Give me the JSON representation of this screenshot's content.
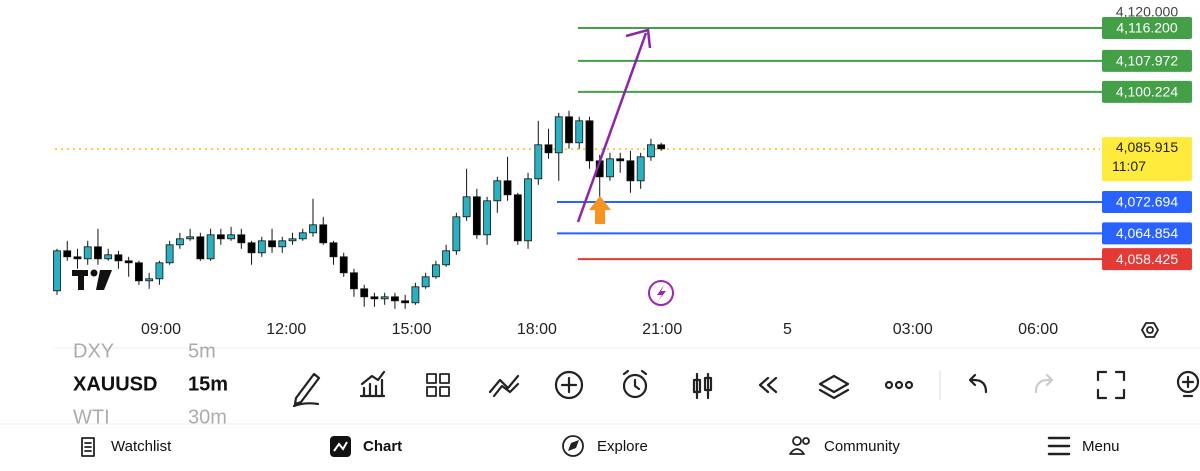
{
  "chart": {
    "ylim": [
      4045.7,
      4123.2
    ],
    "top_price": {
      "value": 4120,
      "label": "4,120.000"
    },
    "up_color": "#2ab0c0",
    "down_color": "#000000",
    "candles": [
      [
        4050.5,
        4061,
        4049.5,
        4060.5
      ],
      [
        4060.5,
        4063,
        4058,
        4059
      ],
      [
        4059,
        4061,
        4056,
        4058.5
      ],
      [
        4058.5,
        4063,
        4057,
        4061.5
      ],
      [
        4061.5,
        4066,
        4057,
        4058.5
      ],
      [
        4058.5,
        4061,
        4058,
        4059.5
      ],
      [
        4059.5,
        4060.5,
        4056,
        4058
      ],
      [
        4058,
        4059,
        4054,
        4057.5
      ],
      [
        4057.5,
        4058,
        4052,
        4053
      ],
      [
        4053,
        4055,
        4051,
        4053.5
      ],
      [
        4053.5,
        4058,
        4052,
        4057.5
      ],
      [
        4057.5,
        4063,
        4057,
        4062
      ],
      [
        4062,
        4065,
        4061,
        4063.5
      ],
      [
        4063.5,
        4066,
        4063,
        4064
      ],
      [
        4064,
        4065,
        4058,
        4058.5
      ],
      [
        4058.5,
        4066,
        4058,
        4064.5
      ],
      [
        4064.5,
        4066,
        4062,
        4063.5
      ],
      [
        4063.5,
        4066.5,
        4063,
        4064.5
      ],
      [
        4064.5,
        4066,
        4061,
        4062.5
      ],
      [
        4062.5,
        4063,
        4057,
        4060
      ],
      [
        4060,
        4064,
        4059,
        4063
      ],
      [
        4063,
        4066,
        4060,
        4061.5
      ],
      [
        4061.5,
        4064,
        4060,
        4063
      ],
      [
        4063,
        4065,
        4062,
        4063.5
      ],
      [
        4063.5,
        4066,
        4063,
        4065
      ],
      [
        4065,
        4073.5,
        4064,
        4067
      ],
      [
        4067,
        4069,
        4062,
        4062.5
      ],
      [
        4062.5,
        4063,
        4057,
        4059
      ],
      [
        4059,
        4060,
        4054,
        4055
      ],
      [
        4055,
        4056,
        4049,
        4051
      ],
      [
        4051,
        4052,
        4046.5,
        4049
      ],
      [
        4049,
        4050,
        4046.5,
        4048.5
      ],
      [
        4048.5,
        4050,
        4047,
        4049
      ],
      [
        4049,
        4050,
        4046,
        4048
      ],
      [
        4048,
        4049.5,
        4046,
        4047.5
      ],
      [
        4047.5,
        4052.5,
        4047,
        4051.5
      ],
      [
        4051.5,
        4055,
        4051,
        4054
      ],
      [
        4054,
        4058,
        4053.5,
        4057
      ],
      [
        4057,
        4062,
        4056.5,
        4060.5
      ],
      [
        4060.5,
        4070,
        4059.5,
        4069
      ],
      [
        4069,
        4081,
        4068,
        4074
      ],
      [
        4074,
        4076,
        4063.5,
        4064.5
      ],
      [
        4064.5,
        4074,
        4062,
        4073
      ],
      [
        4073,
        4079,
        4070,
        4078
      ],
      [
        4078,
        4084,
        4073,
        4074.5
      ],
      [
        4074.5,
        4075,
        4062,
        4063
      ],
      [
        4063,
        4080,
        4061,
        4078.5
      ],
      [
        4078.5,
        4093,
        4077,
        4087
      ],
      [
        4087,
        4091,
        4083.5,
        4085
      ],
      [
        4085,
        4095,
        4078,
        4094
      ],
      [
        4094,
        4095.5,
        4086,
        4087.5
      ],
      [
        4087.5,
        4094,
        4086,
        4093
      ],
      [
        4093,
        4094,
        4081,
        4083
      ],
      [
        4083,
        4084.5,
        4074,
        4079
      ],
      [
        4079,
        4085,
        4078,
        4083.5
      ],
      [
        4083.5,
        4085,
        4080,
        4083
      ],
      [
        4083,
        4085.5,
        4075,
        4078
      ],
      [
        4078,
        4085,
        4076,
        4084
      ],
      [
        4084,
        4088.5,
        4083,
        4087
      ],
      [
        4087,
        4087.5,
        4085.5,
        4086
      ]
    ],
    "levels": [
      {
        "value": 4116.2,
        "label": "4,116.200",
        "color": "#43a047"
      },
      {
        "value": 4107.972,
        "label": "4,107.972",
        "color": "#43a047"
      },
      {
        "value": 4100.224,
        "label": "4,100.224",
        "color": "#43a047"
      },
      {
        "value": 4072.694,
        "label": "4,072.694",
        "color": "#2962ff"
      },
      {
        "value": 4064.854,
        "label": "4,064.854",
        "color": "#2962ff"
      },
      {
        "value": 4058.425,
        "label": "4,058.425",
        "color": "#e53935"
      }
    ],
    "current_price": {
      "value": 4085.915,
      "label": "4,085.915",
      "countdown": "11:07",
      "color": "#ffeb3b"
    },
    "time_labels": [
      "09:00",
      "12:00",
      "15:00",
      "18:00",
      "21:00",
      "5",
      "03:00",
      "06:00"
    ]
  },
  "toolbar": {
    "symbols": [
      {
        "symbol": "DXY",
        "interval": "5m"
      },
      {
        "symbol": "XAUUSD",
        "interval": "15m"
      },
      {
        "symbol": "WTI",
        "interval": "30m"
      }
    ]
  },
  "nav": [
    "Watchlist",
    "Chart",
    "Explore",
    "Community",
    "Menu"
  ]
}
